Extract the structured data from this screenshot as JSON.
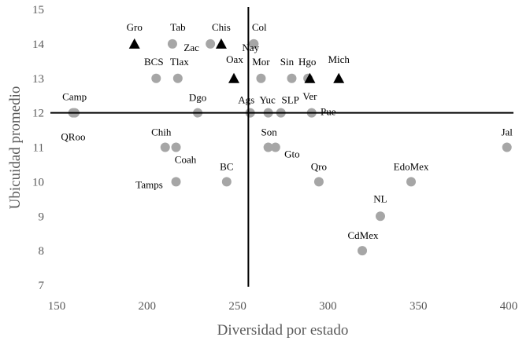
{
  "chart_data": {
    "type": "scatter",
    "xlabel": "Diversidad por estado",
    "ylabel": "Ubicuidad promedio",
    "xlim": [
      150,
      400
    ],
    "ylim": [
      7,
      15
    ],
    "x_ticks": [
      150,
      200,
      250,
      300,
      350,
      400
    ],
    "y_ticks": [
      7,
      8,
      9,
      10,
      11,
      12,
      13,
      14,
      15
    ],
    "reference_lines": {
      "x": 256,
      "y": 12
    },
    "grid": false,
    "colors": {
      "circle": "#a6a6a6",
      "triangle": "#000000",
      "axis": "#000000",
      "text": "#595959"
    },
    "points": [
      {
        "label": "Gro",
        "x": 193,
        "y": 14,
        "marker": "triangle"
      },
      {
        "label": "Tab",
        "x": 214,
        "y": 14,
        "marker": "circle"
      },
      {
        "label": "Zac",
        "x": 235,
        "y": 14,
        "marker": "circle"
      },
      {
        "label": "Chis",
        "x": 241,
        "y": 14,
        "marker": "triangle"
      },
      {
        "label": "Col",
        "x": 259,
        "y": 14,
        "marker": "circle"
      },
      {
        "label": "Nay",
        "x": 259,
        "y": 14,
        "marker": "circle"
      },
      {
        "label": "BCS",
        "x": 205,
        "y": 13,
        "marker": "circle"
      },
      {
        "label": "Tlax",
        "x": 217,
        "y": 13,
        "marker": "circle"
      },
      {
        "label": "Oax",
        "x": 248,
        "y": 13,
        "marker": "triangle"
      },
      {
        "label": "Mor",
        "x": 263,
        "y": 13,
        "marker": "circle"
      },
      {
        "label": "Sin",
        "x": 280,
        "y": 13,
        "marker": "circle"
      },
      {
        "label": "Hgo",
        "x": 289,
        "y": 13,
        "marker": "circle"
      },
      {
        "label": "Ver",
        "x": 290,
        "y": 13,
        "marker": "triangle"
      },
      {
        "label": "Mich",
        "x": 306,
        "y": 13,
        "marker": "triangle"
      },
      {
        "label": "Camp",
        "x": 159,
        "y": 12,
        "marker": "circle"
      },
      {
        "label": "QRoo",
        "x": 160,
        "y": 12,
        "marker": "circle"
      },
      {
        "label": "Dgo",
        "x": 228,
        "y": 12,
        "marker": "circle"
      },
      {
        "label": "Ags",
        "x": 257,
        "y": 12,
        "marker": "circle"
      },
      {
        "label": "Yuc",
        "x": 267,
        "y": 12,
        "marker": "circle"
      },
      {
        "label": "SLP",
        "x": 274,
        "y": 12,
        "marker": "circle"
      },
      {
        "label": "Pue",
        "x": 291,
        "y": 12,
        "marker": "circle"
      },
      {
        "label": "Chih",
        "x": 210,
        "y": 11,
        "marker": "circle"
      },
      {
        "label": "Coah",
        "x": 216,
        "y": 11,
        "marker": "circle"
      },
      {
        "label": "Son",
        "x": 267,
        "y": 11,
        "marker": "circle"
      },
      {
        "label": "Gto",
        "x": 271,
        "y": 11,
        "marker": "circle"
      },
      {
        "label": "Jal",
        "x": 399,
        "y": 11,
        "marker": "circle"
      },
      {
        "label": "Tamps",
        "x": 216,
        "y": 10,
        "marker": "circle"
      },
      {
        "label": "BC",
        "x": 244,
        "y": 10,
        "marker": "circle"
      },
      {
        "label": "Qro",
        "x": 295,
        "y": 10,
        "marker": "circle"
      },
      {
        "label": "EdoMex",
        "x": 346,
        "y": 10,
        "marker": "circle"
      },
      {
        "label": "NL",
        "x": 329,
        "y": 9,
        "marker": "circle"
      },
      {
        "label": "CdMex",
        "x": 319,
        "y": 8,
        "marker": "circle"
      }
    ]
  }
}
